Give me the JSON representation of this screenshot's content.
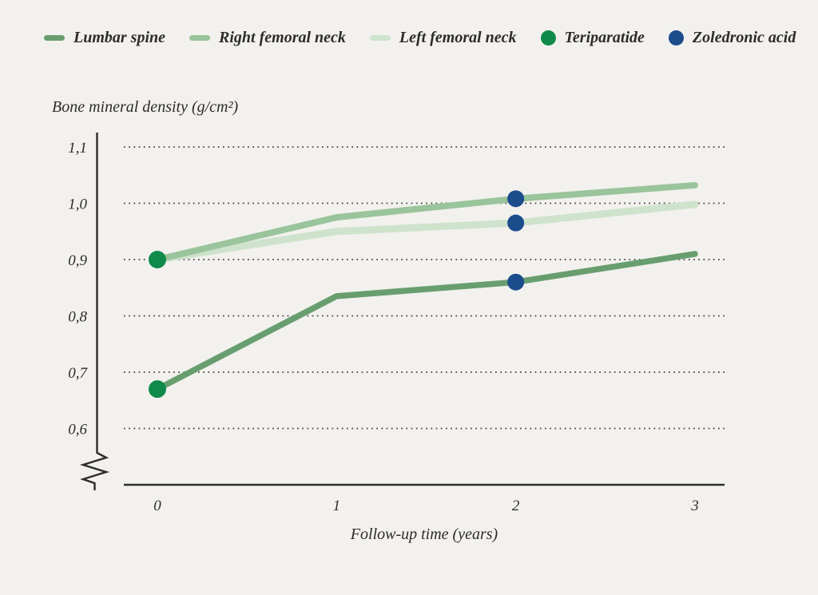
{
  "legend": {
    "items": [
      {
        "label": "Lumbar spine",
        "color": "#689e6f",
        "swatch": "dash"
      },
      {
        "label": "Right femoral neck",
        "color": "#9ac49b",
        "swatch": "dash"
      },
      {
        "label": "Left femoral neck",
        "color": "#cfe3cc",
        "swatch": "dash"
      },
      {
        "label": "Teriparatide",
        "color": "#0f8a4b",
        "swatch": "dot"
      },
      {
        "label": "Zoledronic acid",
        "color": "#1b4c8c",
        "swatch": "dot"
      }
    ]
  },
  "chart_data": {
    "type": "line",
    "ylabel": "Bone mineral density (g/cm²)",
    "xlabel": "Follow-up time (years)",
    "x": [
      0,
      1,
      2,
      3
    ],
    "xticks": [
      "0",
      "1",
      "2",
      "3"
    ],
    "yticks": [
      {
        "label": "1,1",
        "value": 1.1
      },
      {
        "label": "1,0",
        "value": 1.0
      },
      {
        "label": "0,9",
        "value": 0.9
      },
      {
        "label": "0,8",
        "value": 0.8
      },
      {
        "label": "0,7",
        "value": 0.7
      },
      {
        "label": "0,6",
        "value": 0.6
      }
    ],
    "ylim": [
      0.55,
      1.12
    ],
    "grid": "horizontal-dotted",
    "y_axis_break": true,
    "legend_position": "top",
    "series": [
      {
        "name": "Lumbar spine",
        "color": "#689e6f",
        "values": [
          0.67,
          0.835,
          0.86,
          0.91
        ]
      },
      {
        "name": "Right femoral neck",
        "color": "#9ac49b",
        "values": [
          0.9,
          0.975,
          1.008,
          1.032
        ]
      },
      {
        "name": "Left femoral neck",
        "color": "#cfe3cc",
        "values": [
          0.9,
          0.95,
          0.965,
          0.998
        ]
      }
    ],
    "markers": [
      {
        "name": "Teriparatide",
        "color": "#0f8a4b",
        "points": [
          {
            "x": 0,
            "y": 0.9
          },
          {
            "x": 0,
            "y": 0.67
          }
        ]
      },
      {
        "name": "Zoledronic acid",
        "color": "#1b4c8c",
        "points": [
          {
            "x": 2,
            "y": 1.008
          },
          {
            "x": 2,
            "y": 0.965
          },
          {
            "x": 2,
            "y": 0.86
          }
        ]
      }
    ]
  }
}
